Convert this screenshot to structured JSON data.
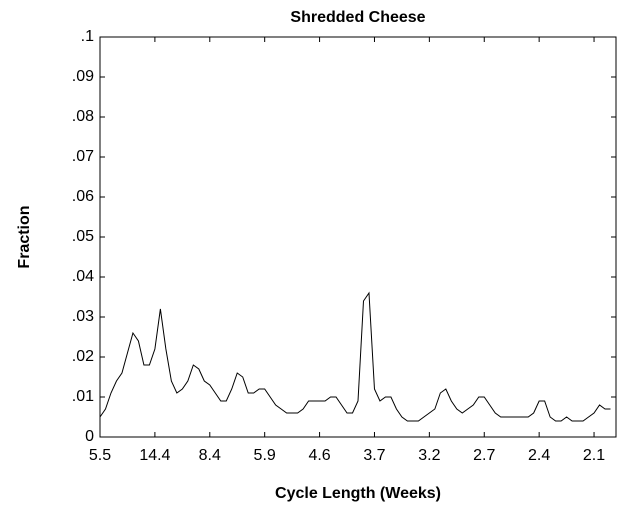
{
  "chart_data": {
    "type": "line",
    "title": "Shredded Cheese",
    "x_label": "Cycle Length (Weeks)",
    "y_label": "Fraction",
    "color": "#000000",
    "values": [
      0.005,
      0.007,
      0.011,
      0.014,
      0.016,
      0.021,
      0.026,
      0.024,
      0.018,
      0.018,
      0.022,
      0.032,
      0.022,
      0.014,
      0.011,
      0.012,
      0.014,
      0.018,
      0.017,
      0.014,
      0.013,
      0.011,
      0.009,
      0.009,
      0.012,
      0.016,
      0.015,
      0.011,
      0.011,
      0.012,
      0.012,
      0.01,
      0.008,
      0.007,
      0.006,
      0.006,
      0.006,
      0.007,
      0.009,
      0.009,
      0.009,
      0.009,
      0.01,
      0.01,
      0.008,
      0.006,
      0.006,
      0.009,
      0.034,
      0.036,
      0.012,
      0.009,
      0.01,
      0.01,
      0.007,
      0.005,
      0.004,
      0.004,
      0.004,
      0.005,
      0.006,
      0.007,
      0.011,
      0.012,
      0.009,
      0.007,
      0.006,
      0.007,
      0.008,
      0.01,
      0.01,
      0.008,
      0.006,
      0.005,
      0.005,
      0.005,
      0.005,
      0.005,
      0.005,
      0.006,
      0.009,
      0.009,
      0.005,
      0.004,
      0.004,
      0.005,
      0.004,
      0.004,
      0.004,
      0.005,
      0.006,
      0.008,
      0.007,
      0.007
    ],
    "xlim": [
      0,
      94
    ],
    "xticks": [
      {
        "value": 0,
        "label": "5.5"
      },
      {
        "value": 10,
        "label": "14.4"
      },
      {
        "value": 20,
        "label": "8.4"
      },
      {
        "value": 30,
        "label": "5.9"
      },
      {
        "value": 40,
        "label": "4.6"
      },
      {
        "value": 50,
        "label": "3.7"
      },
      {
        "value": 60,
        "label": "3.2"
      },
      {
        "value": 70,
        "label": "2.7"
      },
      {
        "value": 80,
        "label": "2.4"
      },
      {
        "value": 90,
        "label": "2.1"
      }
    ],
    "ylim": [
      0,
      0.1
    ],
    "yticks": [
      0,
      {
        "value": 0.01,
        "label": ".01"
      },
      {
        "value": 0.02,
        "label": ".02"
      },
      {
        "value": 0.03,
        "label": ".03"
      },
      {
        "value": 0.04,
        "label": ".04"
      },
      {
        "value": 0.05,
        "label": ".05"
      },
      {
        "value": 0.06,
        "label": ".06"
      },
      {
        "value": 0.07,
        "label": ".07"
      },
      {
        "value": 0.08,
        "label": ".08"
      },
      {
        "value": 0.09,
        "label": ".09"
      },
      {
        "value": 0.1,
        "label": ".1"
      }
    ]
  }
}
